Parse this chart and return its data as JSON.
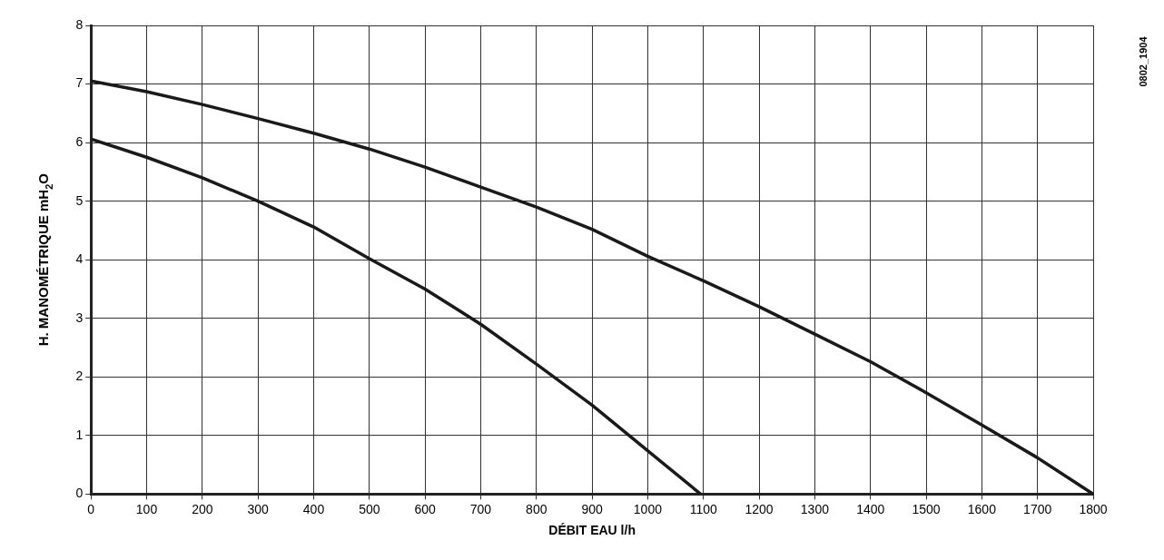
{
  "chart_data": {
    "type": "line",
    "xlabel": "DÉBIT EAU l/h",
    "ylabel": "H. MANOMÉTRIQUE mH$_{2}$O",
    "annotations": [
      "0802_1904"
    ],
    "xlim": [
      0,
      1800
    ],
    "xticks": [
      0,
      100,
      200,
      300,
      400,
      500,
      600,
      700,
      800,
      900,
      1000,
      1100,
      1200,
      1300,
      1400,
      1500,
      1600,
      1700,
      1800
    ],
    "ylim": [
      0,
      8
    ],
    "yticks": [
      0,
      1,
      2,
      3,
      4,
      5,
      6,
      7,
      8
    ],
    "grid": true,
    "legend": false,
    "marker": "none",
    "line_style": "solid",
    "series": [
      {
        "color": "#1a1a1a",
        "x": [
          0,
          100,
          200,
          300,
          400,
          500,
          600,
          700,
          800,
          900,
          1000,
          1100,
          1200,
          1300,
          1400,
          1500,
          1600,
          1700,
          1800
        ],
        "values": [
          7.05,
          6.87,
          6.65,
          6.41,
          6.16,
          5.89,
          5.58,
          5.24,
          4.9,
          4.52,
          4.06,
          3.64,
          3.2,
          2.73,
          2.26,
          1.73,
          1.18,
          0.62,
          0
        ]
      },
      {
        "color": "#1a1a1a",
        "x": [
          0,
          100,
          200,
          300,
          400,
          500,
          600,
          700,
          800,
          900,
          1000,
          1095
        ],
        "values": [
          6.06,
          5.75,
          5.4,
          5.0,
          4.56,
          4.02,
          3.5,
          2.9,
          2.22,
          1.52,
          0.74,
          0
        ]
      }
    ]
  }
}
